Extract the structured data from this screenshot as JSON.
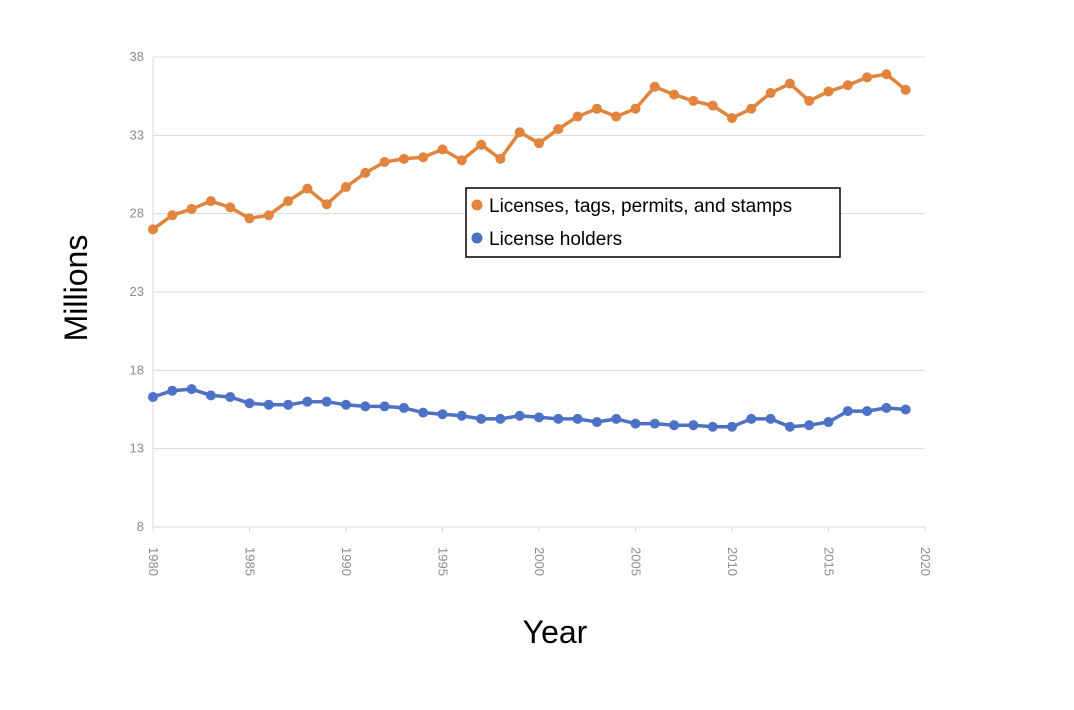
{
  "chart_data": {
    "type": "line",
    "title": "",
    "xlabel": "Year",
    "ylabel": "Millions",
    "xlim": [
      1980,
      2020
    ],
    "ylim": [
      8,
      38
    ],
    "xticks": [
      1980,
      1985,
      1990,
      1995,
      2000,
      2005,
      2010,
      2015,
      2020
    ],
    "yticks": [
      8,
      13,
      18,
      23,
      28,
      33,
      38
    ],
    "grid": "horizontal",
    "legend_position": "center-right",
    "x": [
      1980,
      1981,
      1982,
      1983,
      1984,
      1985,
      1986,
      1987,
      1988,
      1989,
      1990,
      1991,
      1992,
      1993,
      1994,
      1995,
      1996,
      1997,
      1998,
      1999,
      2000,
      2001,
      2002,
      2003,
      2004,
      2005,
      2006,
      2007,
      2008,
      2009,
      2010,
      2011,
      2012,
      2013,
      2014,
      2015,
      2016,
      2017,
      2018,
      2019
    ],
    "series": [
      {
        "name": "Licenses, tags, permits, and stamps",
        "color": "#e0843e",
        "values": [
          27.0,
          27.9,
          28.3,
          28.8,
          28.4,
          27.7,
          27.9,
          28.8,
          29.6,
          28.6,
          29.7,
          30.6,
          31.3,
          31.5,
          31.6,
          32.1,
          31.4,
          32.4,
          31.5,
          33.2,
          32.5,
          33.4,
          34.2,
          34.7,
          34.2,
          34.7,
          36.1,
          35.6,
          35.2,
          34.9,
          34.1,
          34.7,
          35.7,
          36.3,
          35.2,
          35.8,
          36.2,
          36.7,
          36.9,
          35.9
        ]
      },
      {
        "name": "License holders",
        "color": "#4d71c4",
        "values": [
          16.3,
          16.7,
          16.8,
          16.4,
          16.3,
          15.9,
          15.8,
          15.8,
          16.0,
          16.0,
          15.8,
          15.7,
          15.7,
          15.6,
          15.3,
          15.2,
          15.1,
          14.9,
          14.9,
          15.1,
          15.0,
          14.9,
          14.9,
          14.7,
          14.9,
          14.6,
          14.6,
          14.5,
          14.5,
          14.4,
          14.4,
          14.9,
          14.9,
          14.4,
          14.5,
          14.7,
          15.4,
          15.4,
          15.6,
          15.5
        ]
      }
    ]
  }
}
